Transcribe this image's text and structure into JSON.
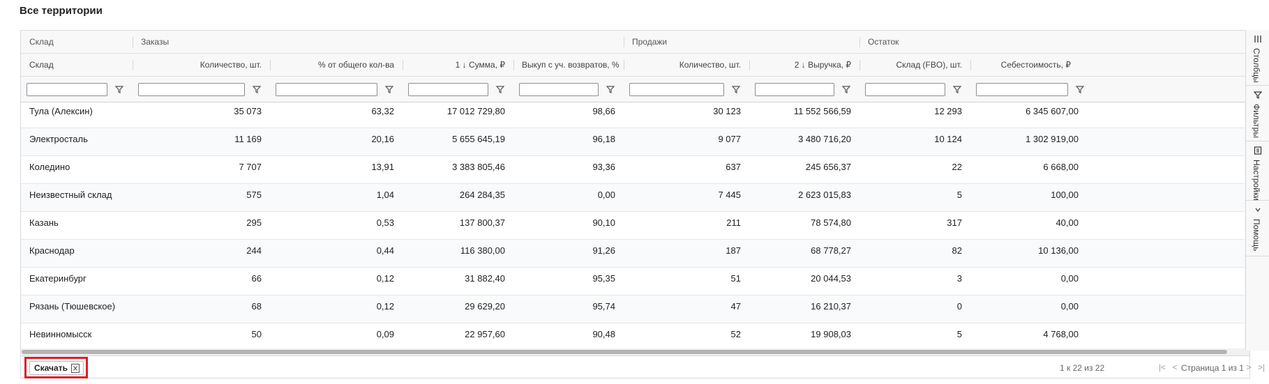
{
  "title": "Все территории",
  "groups": [
    {
      "label": "Склад"
    },
    {
      "label": "Заказы"
    },
    {
      "label": "Продажи"
    },
    {
      "label": "Остаток"
    }
  ],
  "columns": [
    {
      "label": "Склад"
    },
    {
      "label": "Количество, шт."
    },
    {
      "label": "% от общего кол-ва"
    },
    {
      "label": "1 ↓ Сумма, ₽"
    },
    {
      "label": "Выкуп с уч. возвратов, %"
    },
    {
      "label": "Количество, шт."
    },
    {
      "label": "2 ↓ Выручка, ₽"
    },
    {
      "label": "Склад (FBO), шт."
    },
    {
      "label": "Себестоимость, ₽"
    }
  ],
  "rows": [
    [
      "Тула (Алексин)",
      "35 073",
      "63,32",
      "17 012 729,80",
      "98,66",
      "30 123",
      "11 552 566,59",
      "12 293",
      "6 345 607,00"
    ],
    [
      "Электросталь",
      "11 169",
      "20,16",
      "5 655 645,19",
      "96,18",
      "9 077",
      "3 480 716,20",
      "10 124",
      "1 302 919,00"
    ],
    [
      "Коледино",
      "7 707",
      "13,91",
      "3 383 805,46",
      "93,36",
      "637",
      "245 656,37",
      "22",
      "6 668,00"
    ],
    [
      "Неизвестный склад",
      "575",
      "1,04",
      "264 284,35",
      "0,00",
      "7 445",
      "2 623 015,83",
      "5",
      "100,00"
    ],
    [
      "Казань",
      "295",
      "0,53",
      "137 800,37",
      "90,10",
      "211",
      "78 574,80",
      "317",
      "40,00"
    ],
    [
      "Краснодар",
      "244",
      "0,44",
      "116 380,00",
      "91,26",
      "187",
      "68 778,27",
      "82",
      "10 136,00"
    ],
    [
      "Екатеринбург",
      "66",
      "0,12",
      "31 882,40",
      "95,35",
      "51",
      "20 044,53",
      "3",
      "0,00"
    ],
    [
      "Рязань (Тюшевское)",
      "68",
      "0,12",
      "29 629,20",
      "95,74",
      "47",
      "16 210,37",
      "0",
      "0,00"
    ],
    [
      "Невинномысск",
      "50",
      "0,09",
      "22 957,60",
      "90,48",
      "52",
      "19 908,03",
      "5",
      "4 768,00"
    ]
  ],
  "side_panel": [
    {
      "label": "Столбцы",
      "icon": "columns-icon"
    },
    {
      "label": "Фильтры",
      "icon": "filter-icon"
    },
    {
      "label": "Настройки",
      "icon": "settings-icon"
    },
    {
      "label": "Помощь",
      "icon": "help-icon"
    }
  ],
  "footer": {
    "download_label": "Скачать",
    "download_icon": "excel-icon",
    "summary": "1 к 22 из 22",
    "page_label": "Страница 1 из 1"
  },
  "colors": {
    "highlight": "#e01b24",
    "header_bg": "#f8f8f9",
    "border": "#d6d9de"
  }
}
